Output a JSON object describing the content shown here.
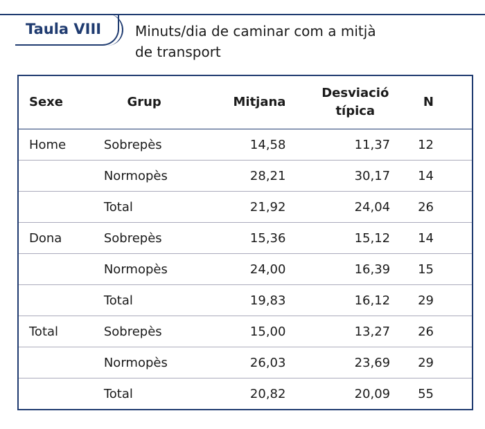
{
  "header": {
    "label": "Taula VIII",
    "caption": "Minuts/dia de caminar com a mitjà de transport"
  },
  "table": {
    "columns": [
      "Sexe",
      "Grup",
      "Mitjana",
      "Desviació típica",
      "N"
    ],
    "groups": [
      {
        "sexe": "Home",
        "rows": [
          [
            "Sobrepès",
            "14,58",
            "11,37",
            "12"
          ],
          [
            "Normopès",
            "28,21",
            "30,17",
            "14"
          ],
          [
            "Total",
            "21,92",
            "24,04",
            "26"
          ]
        ]
      },
      {
        "sexe": "Dona",
        "rows": [
          [
            "Sobrepès",
            "15,36",
            "15,12",
            "14"
          ],
          [
            "Normopès",
            "24,00",
            "16,39",
            "15"
          ],
          [
            "Total",
            "19,83",
            "16,12",
            "29"
          ]
        ]
      },
      {
        "sexe": "Total",
        "rows": [
          [
            "Sobrepès",
            "15,00",
            "13,27",
            "26"
          ],
          [
            "Normopès",
            "26,03",
            "23,69",
            "29"
          ],
          [
            "Total",
            "20,82",
            "20,09",
            "55"
          ]
        ]
      }
    ]
  }
}
